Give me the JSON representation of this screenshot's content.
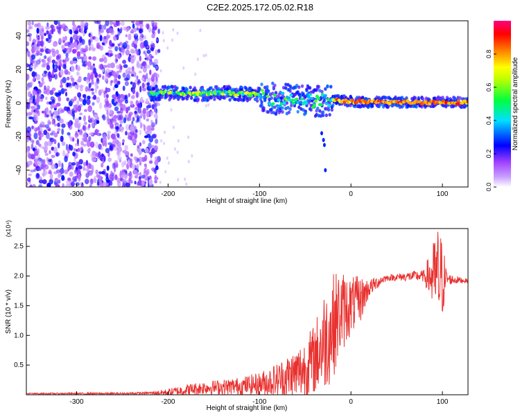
{
  "title": "C2E2.2025.172.05.02.R18",
  "chart_data": [
    {
      "type": "heatmap",
      "xlabel": "Height of straight line (km)",
      "ylabel": "Frequency (Hz)",
      "xlim": [
        -355,
        128
      ],
      "ylim": [
        -50,
        49
      ],
      "xticks": [
        "-300",
        "-200",
        "-100",
        "0",
        "100"
      ],
      "yticks": [
        "40",
        "20",
        "0",
        "-20",
        "-40"
      ],
      "colorbar": {
        "label": "Normalized spectral amplitude",
        "range": [
          0,
          1
        ],
        "ticks": [
          "0.0",
          "0.2",
          "0.4",
          "0.6",
          "0.8"
        ],
        "colors": [
          "#ffffff",
          "#a040ff",
          "#0000ff",
          "#00e0ff",
          "#00ff40",
          "#c0ff00",
          "#ffff00",
          "#ff8000",
          "#ff0000",
          "#ff0080"
        ]
      },
      "description_regions": [
        {
          "x_range": [
            -355,
            -215
          ],
          "freq_range": [
            -50,
            49
          ],
          "level": 0.2
        },
        {
          "x_range": [
            -220,
            -100
          ],
          "freq_center": 6,
          "level": 0.55
        },
        {
          "x_range": [
            -100,
            -20
          ],
          "freq_center": 2,
          "level": 0.45
        },
        {
          "x_range": [
            -20,
            128
          ],
          "freq_center": 0.5,
          "level": 0.85
        }
      ],
      "ridge": {
        "x": [
          -220,
          -200,
          -180,
          -160,
          -140,
          -120,
          -100,
          -80,
          -60,
          -40,
          -20,
          0,
          20,
          60,
          100,
          128
        ],
        "freq": [
          6,
          6,
          5.5,
          5.5,
          6,
          5.5,
          5,
          2,
          3,
          1,
          1.5,
          1,
          0.5,
          0.5,
          0.5,
          0.5
        ]
      }
    },
    {
      "type": "line",
      "xlabel": "Height of straight line (km)",
      "ylabel": "SNR (10 * v/v)",
      "yscale_note": "(x10⁴)",
      "xlim": [
        -355,
        128
      ],
      "ylim": [
        0,
        2.8
      ],
      "xticks": [
        "-300",
        "-200",
        "-100",
        "0",
        "100"
      ],
      "yticks": [
        "0.5",
        "1.0",
        "1.5",
        "2.0",
        "2.5"
      ],
      "color": "#e8312f",
      "series": [
        {
          "x": [
            -355,
            -300,
            -250,
            -220,
            -200,
            -180,
            -160,
            -140,
            -120,
            -100,
            -80,
            -60,
            -50,
            -40,
            -35,
            -30,
            -25,
            -20,
            -15,
            -10,
            -5,
            0,
            5,
            10,
            15,
            20,
            25,
            30,
            35,
            40,
            50,
            60,
            70,
            80,
            85,
            90,
            95,
            100,
            105,
            110,
            128
          ],
          "y": [
            0.02,
            0.02,
            0.02,
            0.03,
            0.04,
            0.08,
            0.12,
            0.13,
            0.15,
            0.18,
            0.25,
            0.35,
            0.45,
            0.6,
            0.75,
            0.9,
            1.0,
            1.15,
            1.3,
            1.4,
            1.45,
            1.5,
            1.55,
            1.6,
            1.7,
            1.8,
            1.85,
            1.9,
            1.95,
            1.97,
            1.98,
            1.99,
            2.0,
            2.0,
            2.0,
            1.98,
            1.97,
            1.96,
            1.95,
            1.94,
            1.92
          ]
        }
      ],
      "noise_envelope": {
        "x": [
          -355,
          -220,
          -200,
          -180,
          -150,
          -120,
          -100,
          -80,
          -60,
          -40,
          -30,
          -20,
          -10,
          0,
          10,
          20,
          40,
          80,
          90,
          95,
          100,
          105,
          128
        ],
        "amp": [
          0.01,
          0.02,
          0.06,
          0.1,
          0.12,
          0.15,
          0.2,
          0.3,
          0.45,
          0.6,
          0.85,
          0.9,
          0.7,
          0.5,
          0.4,
          0.15,
          0.05,
          0.1,
          0.6,
          0.9,
          0.7,
          0.1,
          0.03
        ]
      }
    }
  ]
}
